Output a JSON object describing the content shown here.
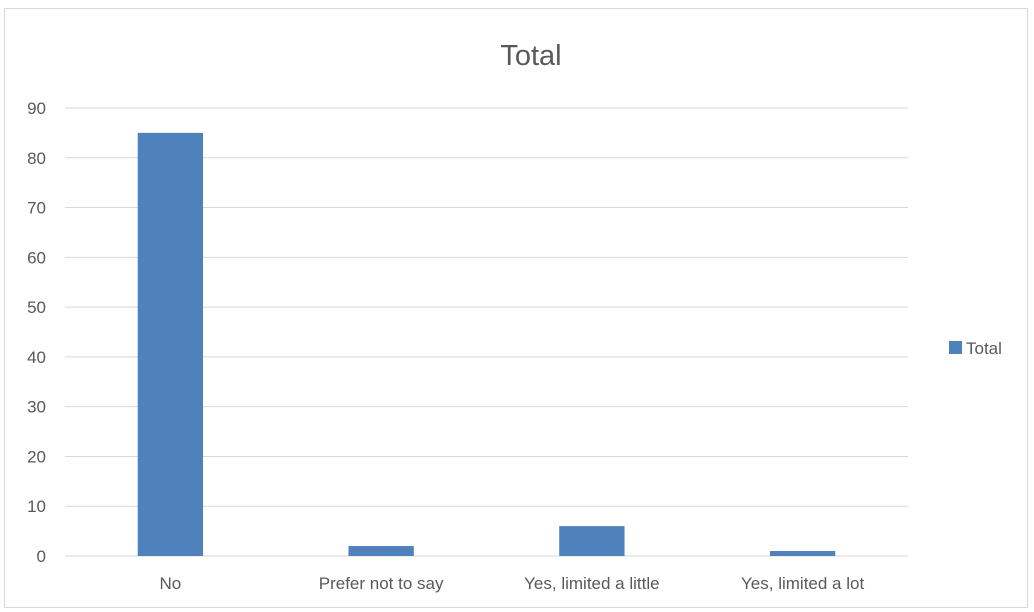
{
  "chart_data": {
    "type": "bar",
    "title": "Total",
    "categories": [
      "No",
      "Prefer not to say",
      "Yes, limited a little",
      "Yes, limited a lot"
    ],
    "series": [
      {
        "name": "Total",
        "values": [
          85,
          2,
          6,
          1
        ],
        "color": "#4f81bd"
      }
    ],
    "xlabel": "",
    "ylabel": "",
    "ylim": [
      0,
      90
    ],
    "yticks": [
      0,
      10,
      20,
      30,
      40,
      50,
      60,
      70,
      80,
      90
    ],
    "grid": true,
    "legend_position": "right",
    "colors": {
      "gridline": "#d9d9d9",
      "text": "#595959",
      "border": "#d9d9d9"
    }
  }
}
